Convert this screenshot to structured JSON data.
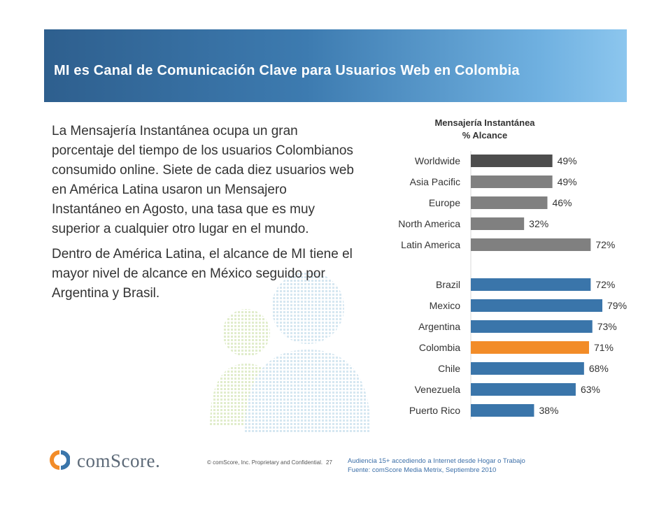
{
  "slide": {
    "title": "MI es Canal de Comunicación Clave para Usuarios Web en Colombia",
    "paragraphs": [
      "La Mensajería Instantánea ocupa un gran porcentaje del tiempo de los usuarios Colombianos consumido online. Siete de cada diez usuarios web en América Latina usaron un Mensajero Instantáneo en Agosto, una tasa que es muy superior a cualquier otro lugar en el mundo.",
      "Dentro de América Latina, el alcance de MI tiene el mayor nivel de alcance en México seguido por Argentina y Brasil."
    ]
  },
  "chart_data": {
    "type": "bar",
    "orientation": "horizontal",
    "title": "Mensajería Instantánea",
    "subtitle": "% Alcance",
    "xlim": [
      0,
      100
    ],
    "value_suffix": "%",
    "groups": [
      {
        "name": "regions",
        "categories": [
          "Worldwide",
          "Asia Pacific",
          "Europe",
          "North America",
          "Latin America"
        ],
        "values": [
          49,
          49,
          46,
          32,
          72
        ],
        "colors": [
          "#4d4d4d",
          "#808080",
          "#808080",
          "#808080",
          "#808080"
        ]
      },
      {
        "name": "latin_america_countries",
        "categories": [
          "Brazil",
          "Mexico",
          "Argentina",
          "Colombia",
          "Chile",
          "Venezuela",
          "Puerto Rico"
        ],
        "values": [
          72,
          79,
          73,
          71,
          68,
          63,
          38
        ],
        "colors": [
          "#3a75aa",
          "#3a75aa",
          "#3a75aa",
          "#f28c28",
          "#3a75aa",
          "#3a75aa",
          "#3a75aa"
        ]
      }
    ]
  },
  "footer": {
    "brand": "comScore.",
    "copyright": "© comScore, Inc.  Proprietary and Confidential.",
    "page_number": "27",
    "source_lines": [
      "Audiencia 15+ accediendo a Internet desde Hogar o Trabajo",
      "Fuente:  comScore Media Metrix, Septiembre 2010"
    ]
  },
  "colors": {
    "banner_dark": "#2e5f8e",
    "banner_light": "#8cc6ee",
    "bar_dark": "#4d4d4d",
    "bar_gray": "#808080",
    "bar_blue": "#3a75aa",
    "bar_highlight": "#f28c28",
    "logo_orange": "#f28c28",
    "logo_blue": "#3a75aa"
  }
}
